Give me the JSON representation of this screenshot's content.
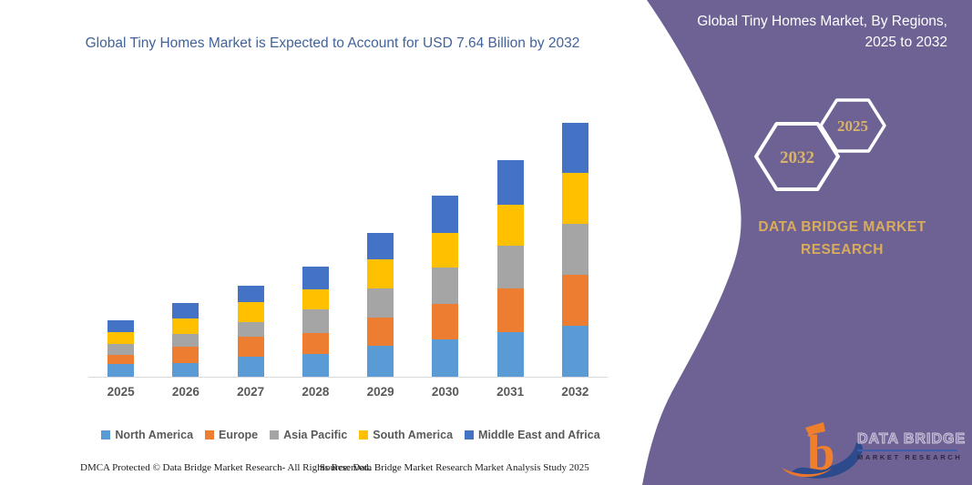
{
  "page": {
    "background": "#FFFFFF",
    "panel_color": "#6E6294"
  },
  "chart": {
    "title": "Global Tiny Homes Market is Expected to Account for USD 7.64 Billion by 2032",
    "title_color": "#41639A",
    "axis_color": "#D9D9D9",
    "label_color": "#595959",
    "footer_left": "DMCA Protected © Data Bridge Market Research-  All Rights Reserved.",
    "footer_right": "Source: Data Bridge Market Research  Market Analysis Study 2025"
  },
  "chart_data": {
    "type": "bar",
    "stacked": true,
    "unit": "USD Billion",
    "title": "Global Tiny Homes Market is Expected to Account for USD 7.64 Billion by 2032",
    "categories": [
      "2025",
      "2026",
      "2027",
      "2028",
      "2029",
      "2030",
      "2031",
      "2032"
    ],
    "series": [
      {
        "name": "North America",
        "color": "#5B9BD5",
        "values": [
          0.38,
          0.41,
          0.61,
          0.69,
          0.95,
          1.13,
          1.35,
          1.53
        ]
      },
      {
        "name": "Europe",
        "color": "#ED7D31",
        "values": [
          0.27,
          0.49,
          0.61,
          0.63,
          0.85,
          1.08,
          1.31,
          1.53
        ]
      },
      {
        "name": "Asia Pacific",
        "color": "#A5A5A5",
        "values": [
          0.32,
          0.39,
          0.43,
          0.72,
          0.87,
          1.09,
          1.3,
          1.53
        ]
      },
      {
        "name": "South America",
        "color": "#FFC000",
        "values": [
          0.35,
          0.46,
          0.61,
          0.6,
          0.88,
          1.04,
          1.24,
          1.53
        ]
      },
      {
        "name": "Middle East and Africa",
        "color": "#4472C4",
        "values": [
          0.35,
          0.46,
          0.5,
          0.69,
          0.8,
          1.13,
          1.35,
          1.52
        ]
      }
    ],
    "totals": [
      1.67,
      2.21,
      2.76,
      3.33,
      4.35,
      5.47,
      6.55,
      7.64
    ],
    "highlight_total_2032": 7.64,
    "ylim": [
      0,
      7.64
    ],
    "gridlines": false,
    "legend_position": "bottom"
  },
  "panel": {
    "title": "Global Tiny Homes Market, By Regions, 2025 to 2032",
    "hexagon_front_label": "2032",
    "hexagon_back_label": "2025",
    "gold": "#D9AC5C",
    "brand_text": "DATA BRIDGE MARKET RESEARCH",
    "logo_line1": "DATA BRIDGE",
    "logo_line2": "MARKET RESEARCH"
  }
}
